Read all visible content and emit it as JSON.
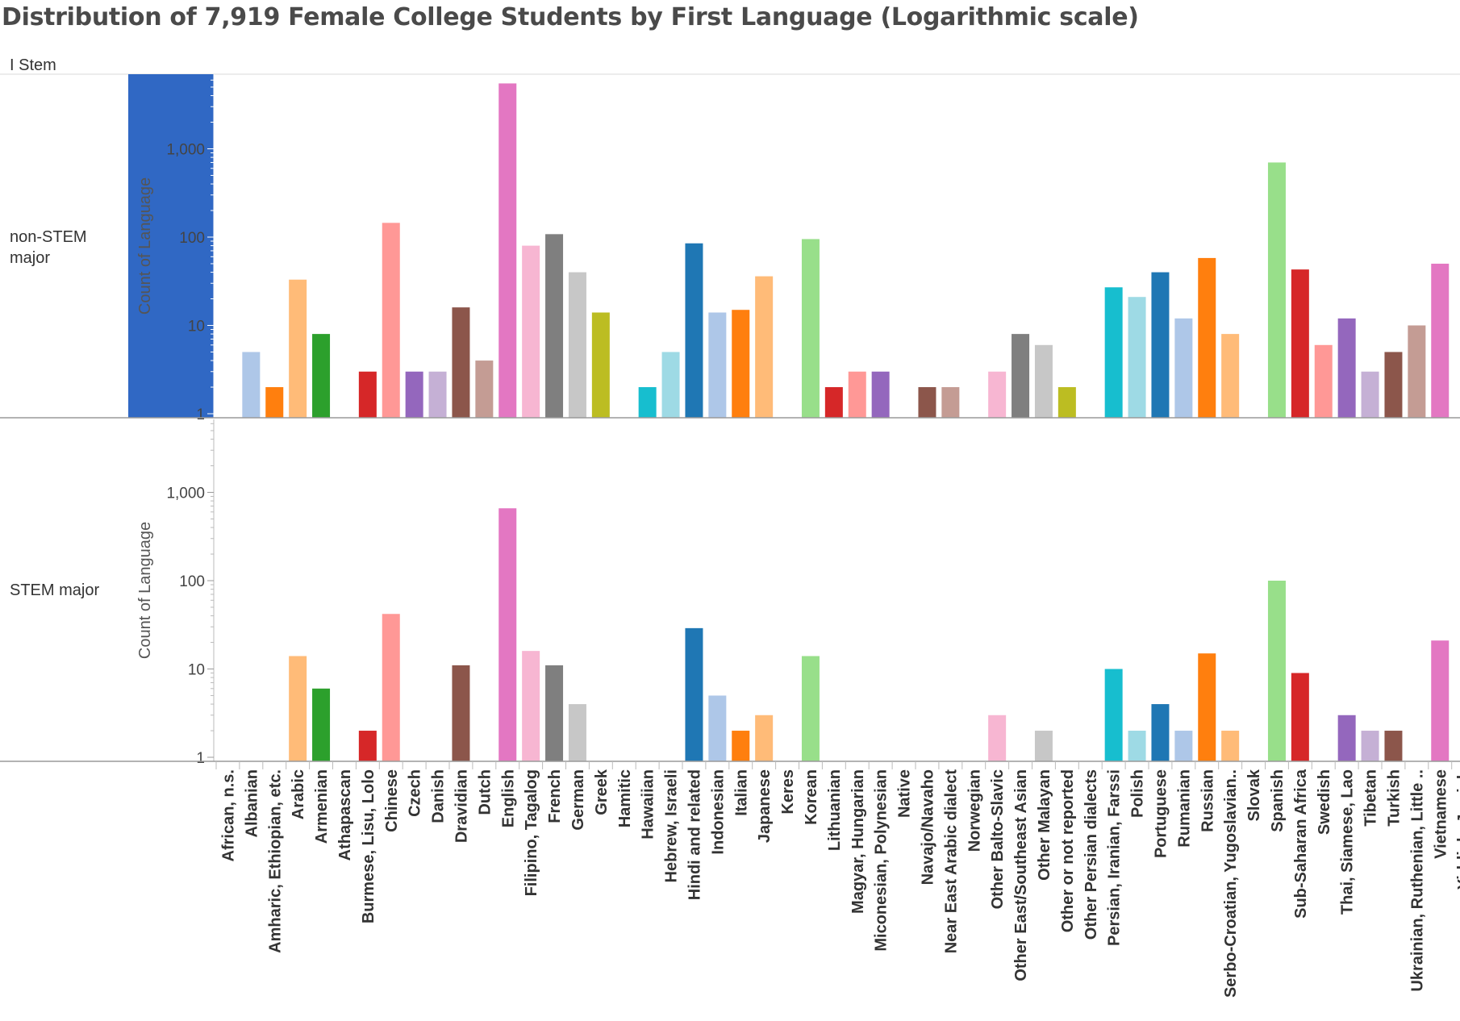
{
  "chart_data": {
    "type": "bar",
    "title": "Distribution of 7,919 Female College Students by First Language (Logarithmic scale)",
    "column_header": "I Stem",
    "ylabel": "Count of Language",
    "yscale": "log",
    "ylim": [
      1,
      8000
    ],
    "yticks": [
      1,
      10,
      100,
      1000
    ],
    "ytick_labels": [
      "1",
      "10",
      "100",
      "1,000"
    ],
    "categories": [
      "African, n.s.",
      "Albanian",
      "Amharic, Ethiopian, etc.",
      "Arabic",
      "Armenian",
      "Athapascan",
      "Burmese, Lisu, Lolo",
      "Chinese",
      "Czech",
      "Danish",
      "Dravidian",
      "Dutch",
      "English",
      "Filipino, Tagalog",
      "French",
      "German",
      "Greek",
      "Hamitic",
      "Hawaiian",
      "Hebrew, Israeli",
      "Hindi and related",
      "Indonesian",
      "Italian",
      "Japanese",
      "Keres",
      "Korean",
      "Lithuanian",
      "Magyar, Hungarian",
      "Miconesian, Polynesian",
      "Native",
      "Navajo/Navaho",
      "Near East Arabic dialect",
      "Norwegian",
      "Other Balto-Slavic",
      "Other East/Southeast Asian",
      "Other Malayan",
      "Other or not reported",
      "Other Persian dialects",
      "Persian, Iranian, Farssi",
      "Polish",
      "Portuguese",
      "Rumanian",
      "Russian",
      "Serbo-Croatian, Yugoslavian..",
      "Slovak",
      "Spanish",
      "Sub-Saharan Africa",
      "Swedish",
      "Thai, Siamese, Lao",
      "Tibetan",
      "Turkish",
      "Ukrainian, Ruthenian, Little ..",
      "Vietnamese",
      "Yiddish, Jewish"
    ],
    "colors": [
      "#aec7e8",
      "#aec7e8",
      "#ff7f0e",
      "#ffbb78",
      "#2ca02c",
      "#98df8a",
      "#d62728",
      "#ff9896",
      "#9467bd",
      "#c5b0d5",
      "#8c564b",
      "#c49c94",
      "#e377c2",
      "#f7b6d2",
      "#7f7f7f",
      "#c7c7c7",
      "#bcbd22",
      "#dbdb8d",
      "#17becf",
      "#9edae5",
      "#1f77b4",
      "#aec7e8",
      "#ff7f0e",
      "#ffbb78",
      "#2ca02c",
      "#98df8a",
      "#d62728",
      "#ff9896",
      "#9467bd",
      "#c5b0d5",
      "#8c564b",
      "#c49c94",
      "#e377c2",
      "#f7b6d2",
      "#7f7f7f",
      "#c7c7c7",
      "#bcbd22",
      "#dbdb8d",
      "#17becf",
      "#9edae5",
      "#1f77b4",
      "#aec7e8",
      "#ff7f0e",
      "#ffbb78",
      "#2ca02c",
      "#98df8a",
      "#d62728",
      "#ff9896",
      "#9467bd",
      "#c5b0d5",
      "#8c564b",
      "#c49c94",
      "#e377c2",
      "#f7b6d2"
    ],
    "rows": [
      {
        "label": "non-STEM major",
        "values": [
          0,
          5,
          2,
          33,
          8,
          0,
          3,
          145,
          3,
          3,
          16,
          4,
          5500,
          80,
          108,
          40,
          14,
          0,
          2,
          5,
          85,
          14,
          15,
          36,
          0,
          95,
          2,
          3,
          3,
          0,
          2,
          2,
          0,
          3,
          8,
          6,
          2,
          0,
          27,
          21,
          40,
          12,
          58,
          8,
          0,
          700,
          43,
          6,
          12,
          3,
          5,
          10,
          50,
          0
        ]
      },
      {
        "label": "STEM major",
        "values": [
          0,
          0,
          0,
          14,
          6,
          0,
          2,
          42,
          0,
          0,
          11,
          0,
          660,
          16,
          11,
          4,
          0,
          0,
          0,
          0,
          29,
          5,
          2,
          3,
          0,
          14,
          0,
          0,
          0,
          0,
          0,
          0,
          0,
          3,
          0,
          2,
          0,
          0,
          10,
          2,
          4,
          2,
          15,
          2,
          0,
          100,
          9,
          0,
          3,
          2,
          2,
          0,
          21,
          0
        ]
      }
    ]
  }
}
